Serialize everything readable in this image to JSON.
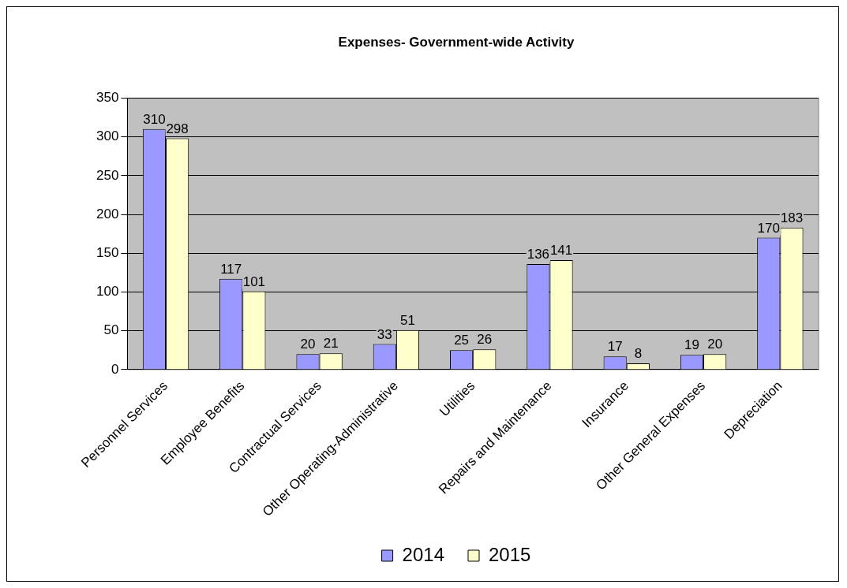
{
  "chart_data": {
    "type": "bar",
    "title": "Expenses- Government-wide Activity",
    "categories": [
      "Personnel Services",
      "Employee Benefits",
      "Contractual Services",
      "Other Operating-Administrative",
      "Utilities",
      "Repairs and Maintenance",
      "Insurance",
      "Other General Expenses",
      "Depreciation"
    ],
    "series": [
      {
        "name": "2014",
        "color": "#9999ff",
        "values": [
          310,
          117,
          20,
          33,
          25,
          136,
          17,
          19,
          170
        ]
      },
      {
        "name": "2015",
        "color": "#ffffcc",
        "values": [
          298,
          101,
          21,
          51,
          26,
          141,
          8,
          20,
          183
        ]
      }
    ],
    "ylim": [
      0,
      350
    ],
    "yticks": [
      0,
      50,
      100,
      150,
      200,
      250,
      300,
      350
    ],
    "grid": "y",
    "legend": "bottom",
    "data_labels": true
  }
}
